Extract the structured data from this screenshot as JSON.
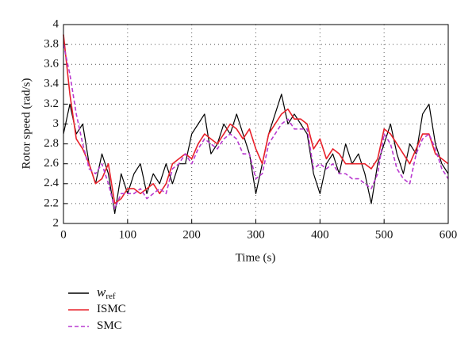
{
  "chart_data": {
    "type": "line",
    "xlabel": "Time (s)",
    "ylabel": "Rotor speed (rad/s)",
    "x": [
      0,
      10,
      20,
      30,
      40,
      50,
      60,
      70,
      80,
      90,
      100,
      110,
      120,
      130,
      140,
      150,
      160,
      170,
      180,
      190,
      200,
      210,
      220,
      230,
      240,
      250,
      260,
      270,
      280,
      290,
      300,
      310,
      320,
      330,
      340,
      350,
      360,
      370,
      380,
      390,
      400,
      410,
      420,
      430,
      440,
      450,
      460,
      470,
      480,
      490,
      500,
      510,
      520,
      530,
      540,
      550,
      560,
      570,
      580,
      590,
      600
    ],
    "series": [
      {
        "name": "w",
        "subscript": "ref",
        "color": "#000000",
        "dash": false,
        "values": [
          2.9,
          3.2,
          2.9,
          3.0,
          2.6,
          2.4,
          2.7,
          2.5,
          2.1,
          2.5,
          2.3,
          2.5,
          2.6,
          2.3,
          2.5,
          2.4,
          2.6,
          2.4,
          2.6,
          2.6,
          2.9,
          3.0,
          3.1,
          2.7,
          2.8,
          3.0,
          2.9,
          3.1,
          2.9,
          2.7,
          2.3,
          2.6,
          2.9,
          3.1,
          3.3,
          3.0,
          3.1,
          3.0,
          2.9,
          2.5,
          2.3,
          2.6,
          2.7,
          2.5,
          2.8,
          2.6,
          2.7,
          2.5,
          2.2,
          2.6,
          2.8,
          3.0,
          2.7,
          2.5,
          2.8,
          2.7,
          3.1,
          3.2,
          2.8,
          2.6,
          2.5
        ]
      },
      {
        "name": "ISMC",
        "color": "#e8202a",
        "dash": false,
        "values": [
          3.9,
          3.3,
          2.85,
          2.75,
          2.6,
          2.4,
          2.45,
          2.6,
          2.2,
          2.25,
          2.35,
          2.35,
          2.3,
          2.35,
          2.4,
          2.3,
          2.4,
          2.6,
          2.65,
          2.7,
          2.65,
          2.8,
          2.9,
          2.85,
          2.8,
          2.9,
          3.0,
          2.95,
          2.85,
          2.95,
          2.75,
          2.6,
          2.9,
          3.0,
          3.1,
          3.15,
          3.05,
          3.05,
          3.0,
          2.75,
          2.85,
          2.65,
          2.75,
          2.7,
          2.6,
          2.6,
          2.6,
          2.6,
          2.55,
          2.65,
          2.95,
          2.9,
          2.8,
          2.7,
          2.6,
          2.75,
          2.9,
          2.9,
          2.7,
          2.65,
          2.6
        ]
      },
      {
        "name": "SMC",
        "color": "#b93ad0",
        "dash": true,
        "values": [
          3.8,
          3.5,
          3.1,
          2.8,
          2.55,
          2.5,
          2.6,
          2.4,
          2.15,
          2.3,
          2.3,
          2.3,
          2.35,
          2.25,
          2.3,
          2.35,
          2.3,
          2.55,
          2.6,
          2.7,
          2.6,
          2.75,
          2.85,
          2.8,
          2.75,
          2.85,
          2.9,
          2.85,
          2.7,
          2.7,
          2.45,
          2.5,
          2.8,
          2.9,
          3.0,
          3.05,
          2.95,
          2.95,
          2.95,
          2.55,
          2.6,
          2.55,
          2.6,
          2.5,
          2.5,
          2.45,
          2.45,
          2.4,
          2.35,
          2.5,
          2.9,
          2.8,
          2.55,
          2.45,
          2.4,
          2.7,
          2.85,
          2.9,
          2.75,
          2.55,
          2.45
        ]
      }
    ],
    "xlim": [
      0,
      600
    ],
    "xticks": [
      0,
      100,
      200,
      300,
      400,
      500,
      600
    ],
    "ylim": [
      2,
      4
    ],
    "yticks": [
      2,
      2.2,
      2.4,
      2.6,
      2.8,
      3,
      3.2,
      3.4,
      3.6,
      3.8,
      4
    ],
    "grid": true,
    "legend": "below-left"
  }
}
